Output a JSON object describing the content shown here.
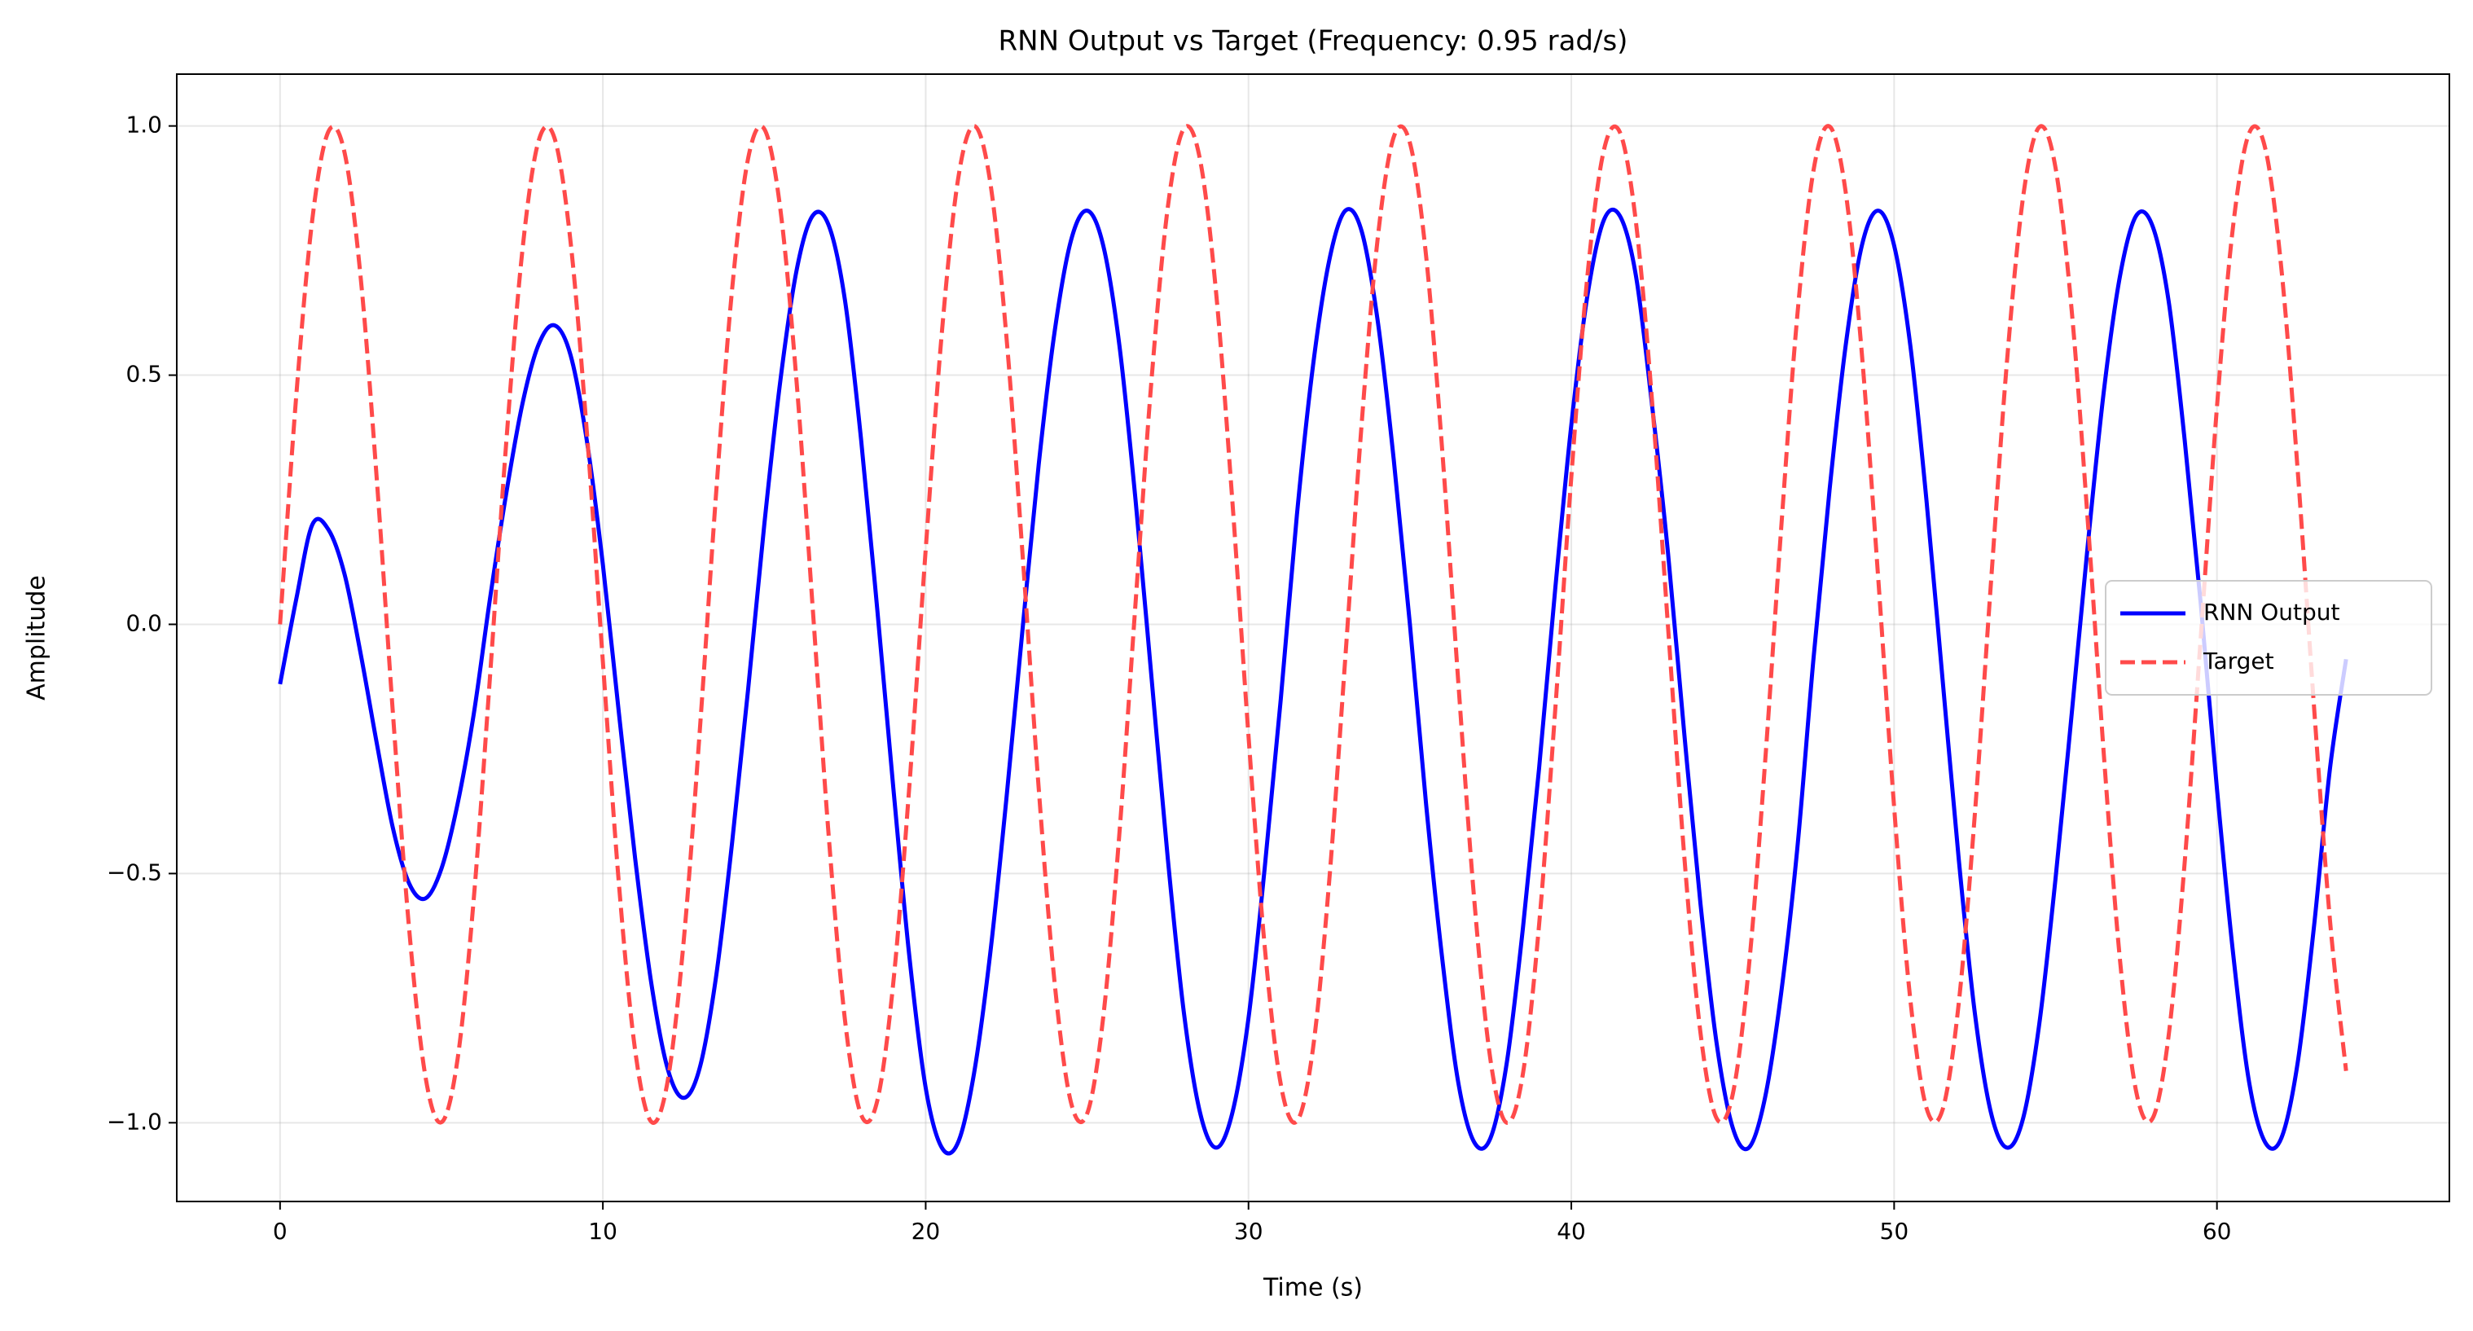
{
  "chart_data": {
    "type": "line",
    "title": "RNN Output vs Target (Frequency: 0.95 rad/s)",
    "x_label": "Time (s)",
    "y_label": "Amplitude",
    "x": [
      0,
      0.5,
      1,
      1.5,
      2,
      2.5,
      3,
      3.5,
      4,
      4.5,
      5,
      5.5,
      6,
      6.5,
      7,
      7.5,
      8,
      8.5,
      9,
      9.5,
      10,
      10.5,
      11,
      11.5,
      12,
      12.5,
      13,
      13.5,
      14,
      14.5,
      15,
      15.5,
      16,
      16.5,
      17,
      17.5,
      18,
      18.5,
      19,
      19.5,
      20,
      20.5,
      21,
      21.5,
      22,
      22.5,
      23,
      23.5,
      24,
      24.5,
      25,
      25.5,
      26,
      26.5,
      27,
      27.5,
      28,
      28.5,
      29,
      29.5,
      30,
      30.5,
      31,
      31.5,
      32,
      32.5,
      33,
      33.5,
      34,
      34.5,
      35,
      35.5,
      36,
      36.5,
      37,
      37.5,
      38,
      38.5,
      39,
      39.5,
      40,
      40.5,
      41,
      41.5,
      42,
      42.5,
      43,
      43.5,
      44,
      44.5,
      45,
      45.5,
      46,
      46.5,
      47,
      47.5,
      48,
      48.5,
      49,
      49.5,
      50,
      50.5,
      51,
      51.5,
      52,
      52.5,
      53,
      53.5,
      54,
      54.5,
      55,
      55.5,
      56,
      56.5,
      57,
      57.5,
      58,
      58.5,
      59,
      59.5,
      60,
      60.5,
      61,
      61.5,
      62,
      62.5,
      63,
      63.5,
      64
    ],
    "series": [
      {
        "name": "RNN Output",
        "color": "#0000ff",
        "dash": false,
        "values": [
          -0.12,
          0.05,
          0.2,
          0.19,
          0.1,
          -0.06,
          -0.24,
          -0.41,
          -0.52,
          -0.55,
          -0.49,
          -0.36,
          -0.18,
          0.05,
          0.26,
          0.44,
          0.56,
          0.6,
          0.54,
          0.37,
          0.12,
          -0.18,
          -0.47,
          -0.72,
          -0.89,
          -0.95,
          -0.89,
          -0.71,
          -0.44,
          -0.13,
          0.2,
          0.49,
          0.71,
          0.82,
          0.8,
          0.65,
          0.37,
          0.03,
          -0.33,
          -0.67,
          -0.93,
          -1.05,
          -1.04,
          -0.9,
          -0.66,
          -0.35,
          -0.01,
          0.32,
          0.59,
          0.77,
          0.83,
          0.76,
          0.56,
          0.25,
          -0.11,
          -0.47,
          -0.78,
          -0.98,
          -1.05,
          -0.98,
          -0.79,
          -0.49,
          -0.15,
          0.22,
          0.52,
          0.73,
          0.83,
          0.79,
          0.61,
          0.33,
          0.0,
          -0.36,
          -0.67,
          -0.92,
          -1.04,
          -1.03,
          -0.88,
          -0.61,
          -0.29,
          0.07,
          0.4,
          0.66,
          0.81,
          0.82,
          0.7,
          0.44,
          0.14,
          -0.22,
          -0.56,
          -0.84,
          -1.01,
          -1.05,
          -0.95,
          -0.74,
          -0.45,
          -0.07,
          0.27,
          0.56,
          0.76,
          0.83,
          0.76,
          0.56,
          0.25,
          -0.11,
          -0.47,
          -0.78,
          -0.98,
          -1.05,
          -0.99,
          -0.8,
          -0.51,
          -0.18,
          0.16,
          0.47,
          0.7,
          0.82,
          0.8,
          0.65,
          0.37,
          0.04,
          -0.33,
          -0.66,
          -0.92,
          -1.04,
          -1.03,
          -0.88,
          -0.61,
          -0.29,
          -0.07
        ]
      },
      {
        "name": "Target",
        "color": "#ff4a4a",
        "dash": true,
        "values": [
          0,
          0.457,
          0.813,
          0.989,
          0.946,
          0.694,
          0.288,
          -0.182,
          -0.612,
          -0.906,
          -0.999,
          -0.872,
          -0.551,
          -0.108,
          0.359,
          0.746,
          0.968,
          0.976,
          0.767,
          0.389,
          -0.075,
          -0.523,
          -0.855,
          -0.998,
          -0.919,
          -0.638,
          -0.215,
          0.256,
          0.67,
          0.935,
          0.994,
          0.832,
          0.487,
          0.033,
          -0.428,
          -0.794,
          -0.984,
          -0.956,
          -0.717,
          -0.319,
          0.15,
          0.585,
          0.892,
          1.0,
          0.887,
          0.578,
          0.141,
          -0.328,
          -0.723,
          -0.959,
          -0.982,
          -0.788,
          -0.42,
          0.042,
          0.494,
          0.837,
          0.995,
          0.932,
          0.663,
          0.247,
          -0.224,
          -0.645,
          -0.923,
          -0.997,
          -0.85,
          -0.515,
          -0.066,
          0.398,
          0.773,
          0.978,
          0.966,
          0.74,
          0.35,
          -0.117,
          -0.558,
          -0.876,
          -1.0,
          -0.902,
          -0.604,
          -0.173,
          0.296,
          0.7,
          0.949,
          0.988,
          0.808,
          0.449,
          -0.009,
          -0.466,
          -0.819,
          -0.991,
          -0.943,
          -0.687,
          -0.279,
          0.192,
          0.619,
          0.91,
          0.999,
          0.867,
          0.543,
          0.099,
          -0.367,
          -0.752,
          -0.97,
          -0.974,
          -0.761,
          -0.381,
          0.084,
          0.531,
          0.86,
          0.998,
          0.916,
          0.63,
          0.206,
          -0.265,
          -0.676,
          -0.938,
          -0.992,
          -0.827,
          -0.478,
          -0.024,
          0.436,
          0.799,
          0.986,
          0.954,
          0.711,
          0.31,
          -0.159,
          -0.593,
          -0.896
        ]
      }
    ],
    "xlim": [
      -3.2,
      67.2
    ],
    "xticks": [
      0,
      10,
      20,
      30,
      40,
      50,
      60
    ],
    "ylim": [
      -1.158,
      1.104
    ],
    "yticks": [
      {
        "value": -1.0,
        "label": "−1.0"
      },
      {
        "value": -0.5,
        "label": "−0.5"
      },
      {
        "value": 0,
        "label": "0.0"
      },
      {
        "value": 0.5,
        "label": "0.5"
      },
      {
        "value": 1.0,
        "label": "1.0"
      }
    ],
    "grid": true,
    "legend": "center right"
  }
}
